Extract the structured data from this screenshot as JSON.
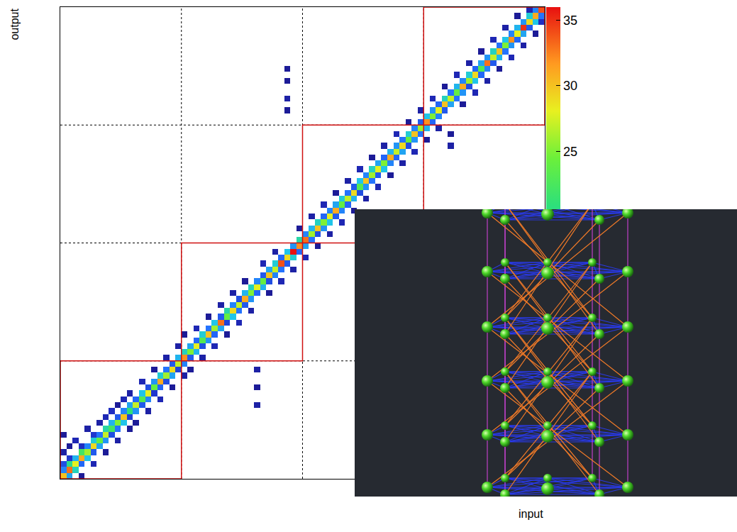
{
  "chart_data": {
    "type": "heatmap",
    "x_label": "input",
    "y_label": "output",
    "xlim": [
      0,
      80
    ],
    "ylim": [
      0,
      80
    ],
    "tick_labels": false,
    "blocks": [
      0,
      20,
      40,
      60,
      80
    ],
    "color_range": [
      0,
      36
    ],
    "color_ticks": [
      25,
      30,
      35
    ],
    "cells": [
      [
        0,
        0,
        30
      ],
      [
        0,
        1,
        12
      ],
      [
        0,
        2,
        8
      ],
      [
        0,
        4,
        3
      ],
      [
        0,
        7,
        2
      ],
      [
        1,
        0,
        14
      ],
      [
        1,
        1,
        33
      ],
      [
        1,
        2,
        20
      ],
      [
        1,
        3,
        6
      ],
      [
        1,
        5,
        2
      ],
      [
        2,
        1,
        18
      ],
      [
        2,
        2,
        28
      ],
      [
        2,
        3,
        15
      ],
      [
        2,
        6,
        4
      ],
      [
        3,
        0,
        2
      ],
      [
        3,
        2,
        10
      ],
      [
        3,
        3,
        31
      ],
      [
        3,
        4,
        22
      ],
      [
        3,
        5,
        5
      ],
      [
        4,
        3,
        16
      ],
      [
        4,
        4,
        26
      ],
      [
        4,
        5,
        12
      ],
      [
        4,
        8,
        3
      ],
      [
        5,
        2,
        4
      ],
      [
        5,
        4,
        9
      ],
      [
        5,
        5,
        29
      ],
      [
        5,
        6,
        17
      ],
      [
        5,
        7,
        6
      ],
      [
        6,
        5,
        14
      ],
      [
        6,
        6,
        24
      ],
      [
        6,
        7,
        11
      ],
      [
        6,
        9,
        3
      ],
      [
        7,
        4,
        2
      ],
      [
        7,
        6,
        13
      ],
      [
        7,
        7,
        27
      ],
      [
        7,
        8,
        19
      ],
      [
        7,
        10,
        4
      ],
      [
        8,
        7,
        8
      ],
      [
        8,
        8,
        22
      ],
      [
        8,
        9,
        15
      ],
      [
        8,
        11,
        5
      ],
      [
        9,
        6,
        3
      ],
      [
        9,
        8,
        11
      ],
      [
        9,
        9,
        25
      ],
      [
        9,
        10,
        9
      ],
      [
        9,
        12,
        2
      ],
      [
        10,
        9,
        16
      ],
      [
        10,
        10,
        30
      ],
      [
        10,
        11,
        12
      ],
      [
        10,
        13,
        4
      ],
      [
        11,
        8,
        2
      ],
      [
        11,
        10,
        7
      ],
      [
        11,
        11,
        21
      ],
      [
        11,
        12,
        14
      ],
      [
        11,
        14,
        3
      ],
      [
        12,
        11,
        13
      ],
      [
        12,
        12,
        27
      ],
      [
        12,
        13,
        10
      ],
      [
        12,
        9,
        2
      ],
      [
        13,
        12,
        9
      ],
      [
        13,
        13,
        23
      ],
      [
        13,
        14,
        16
      ],
      [
        13,
        16,
        4
      ],
      [
        14,
        13,
        12
      ],
      [
        14,
        14,
        28
      ],
      [
        14,
        15,
        8
      ],
      [
        14,
        11,
        3
      ],
      [
        15,
        14,
        6
      ],
      [
        15,
        15,
        24
      ],
      [
        15,
        16,
        13
      ],
      [
        15,
        18,
        2
      ],
      [
        16,
        15,
        10
      ],
      [
        16,
        16,
        31
      ],
      [
        16,
        17,
        17
      ],
      [
        16,
        13,
        4
      ],
      [
        17,
        16,
        8
      ],
      [
        17,
        17,
        26
      ],
      [
        17,
        18,
        11
      ],
      [
        17,
        20,
        3
      ],
      [
        18,
        17,
        14
      ],
      [
        18,
        18,
        29
      ],
      [
        18,
        19,
        9
      ],
      [
        18,
        15,
        2
      ],
      [
        19,
        18,
        7
      ],
      [
        19,
        19,
        27
      ],
      [
        19,
        20,
        15
      ],
      [
        19,
        22,
        3
      ],
      [
        20,
        19,
        12
      ],
      [
        20,
        20,
        32
      ],
      [
        20,
        21,
        18
      ],
      [
        20,
        17,
        3
      ],
      [
        20,
        24,
        2
      ],
      [
        21,
        20,
        9
      ],
      [
        21,
        21,
        25
      ],
      [
        21,
        22,
        14
      ],
      [
        21,
        18,
        2
      ],
      [
        22,
        21,
        15
      ],
      [
        22,
        22,
        28
      ],
      [
        22,
        23,
        10
      ],
      [
        22,
        25,
        4
      ],
      [
        23,
        22,
        8
      ],
      [
        23,
        23,
        23
      ],
      [
        23,
        24,
        17
      ],
      [
        23,
        20,
        3
      ],
      [
        24,
        23,
        13
      ],
      [
        24,
        24,
        30
      ],
      [
        24,
        25,
        11
      ],
      [
        24,
        27,
        2
      ],
      [
        25,
        24,
        10
      ],
      [
        25,
        25,
        26
      ],
      [
        25,
        26,
        16
      ],
      [
        25,
        22,
        4
      ],
      [
        26,
        25,
        14
      ],
      [
        26,
        26,
        33
      ],
      [
        26,
        27,
        9
      ],
      [
        26,
        29,
        3
      ],
      [
        27,
        26,
        7
      ],
      [
        27,
        27,
        24
      ],
      [
        27,
        28,
        19
      ],
      [
        27,
        24,
        2
      ],
      [
        28,
        27,
        16
      ],
      [
        28,
        28,
        29
      ],
      [
        28,
        29,
        12
      ],
      [
        28,
        31,
        3
      ],
      [
        29,
        28,
        11
      ],
      [
        29,
        29,
        27
      ],
      [
        29,
        30,
        8
      ],
      [
        29,
        26,
        4
      ],
      [
        30,
        29,
        9
      ],
      [
        30,
        30,
        31
      ],
      [
        30,
        31,
        15
      ],
      [
        30,
        33,
        2
      ],
      [
        31,
        30,
        13
      ],
      [
        31,
        31,
        25
      ],
      [
        31,
        32,
        18
      ],
      [
        31,
        28,
        3
      ],
      [
        32,
        31,
        10
      ],
      [
        32,
        32,
        28
      ],
      [
        32,
        33,
        12
      ],
      [
        32,
        12,
        3
      ],
      [
        32,
        15,
        2
      ],
      [
        32,
        18,
        3
      ],
      [
        33,
        32,
        15
      ],
      [
        33,
        33,
        24
      ],
      [
        33,
        34,
        9
      ],
      [
        33,
        36,
        4
      ],
      [
        34,
        33,
        8
      ],
      [
        34,
        34,
        30
      ],
      [
        34,
        35,
        14
      ],
      [
        34,
        31,
        2
      ],
      [
        35,
        34,
        12
      ],
      [
        35,
        35,
        27
      ],
      [
        35,
        36,
        17
      ],
      [
        35,
        38,
        3
      ],
      [
        36,
        35,
        11
      ],
      [
        36,
        36,
        34
      ],
      [
        36,
        37,
        10
      ],
      [
        36,
        33,
        4
      ],
      [
        37,
        36,
        9
      ],
      [
        37,
        37,
        29
      ],
      [
        37,
        38,
        16
      ],
      [
        37,
        62,
        2
      ],
      [
        37,
        64,
        3
      ],
      [
        37,
        67,
        2
      ],
      [
        37,
        69,
        2
      ],
      [
        38,
        37,
        17
      ],
      [
        38,
        38,
        36
      ],
      [
        38,
        39,
        13
      ],
      [
        38,
        35,
        3
      ],
      [
        39,
        38,
        10
      ],
      [
        39,
        39,
        32
      ],
      [
        39,
        40,
        19
      ],
      [
        39,
        42,
        2
      ],
      [
        40,
        39,
        14
      ],
      [
        40,
        40,
        33
      ],
      [
        40,
        41,
        12
      ],
      [
        40,
        37,
        4
      ],
      [
        41,
        40,
        11
      ],
      [
        41,
        41,
        26
      ],
      [
        41,
        42,
        15
      ],
      [
        41,
        44,
        3
      ],
      [
        42,
        41,
        8
      ],
      [
        42,
        42,
        30
      ],
      [
        42,
        43,
        18
      ],
      [
        42,
        39,
        2
      ],
      [
        43,
        42,
        13
      ],
      [
        43,
        43,
        25
      ],
      [
        43,
        44,
        10
      ],
      [
        43,
        46,
        4
      ],
      [
        44,
        43,
        16
      ],
      [
        44,
        44,
        28
      ],
      [
        44,
        45,
        12
      ],
      [
        44,
        41,
        3
      ],
      [
        45,
        44,
        9
      ],
      [
        45,
        45,
        31
      ],
      [
        45,
        46,
        14
      ],
      [
        45,
        48,
        2
      ],
      [
        46,
        45,
        12
      ],
      [
        46,
        46,
        24
      ],
      [
        46,
        47,
        17
      ],
      [
        46,
        43,
        4
      ],
      [
        47,
        46,
        10
      ],
      [
        47,
        47,
        27
      ],
      [
        47,
        48,
        11
      ],
      [
        47,
        50,
        3
      ],
      [
        48,
        47,
        15
      ],
      [
        48,
        48,
        29
      ],
      [
        48,
        49,
        9
      ],
      [
        48,
        45,
        2
      ],
      [
        49,
        48,
        8
      ],
      [
        49,
        49,
        23
      ],
      [
        49,
        50,
        16
      ],
      [
        49,
        52,
        4
      ],
      [
        50,
        49,
        13
      ],
      [
        50,
        50,
        30
      ],
      [
        50,
        51,
        12
      ],
      [
        50,
        47,
        3
      ],
      [
        51,
        50,
        11
      ],
      [
        51,
        51,
        26
      ],
      [
        51,
        52,
        18
      ],
      [
        51,
        54,
        2
      ],
      [
        52,
        51,
        9
      ],
      [
        52,
        52,
        28
      ],
      [
        52,
        53,
        14
      ],
      [
        52,
        49,
        4
      ],
      [
        53,
        52,
        16
      ],
      [
        53,
        53,
        25
      ],
      [
        53,
        54,
        10
      ],
      [
        53,
        56,
        3
      ],
      [
        54,
        53,
        12
      ],
      [
        54,
        54,
        31
      ],
      [
        54,
        55,
        15
      ],
      [
        54,
        51,
        2
      ],
      [
        55,
        54,
        10
      ],
      [
        55,
        55,
        27
      ],
      [
        55,
        56,
        13
      ],
      [
        55,
        58,
        4
      ],
      [
        56,
        55,
        14
      ],
      [
        56,
        56,
        29
      ],
      [
        56,
        57,
        11
      ],
      [
        56,
        53,
        3
      ],
      [
        57,
        56,
        8
      ],
      [
        57,
        57,
        24
      ],
      [
        57,
        58,
        17
      ],
      [
        57,
        60,
        2
      ],
      [
        58,
        57,
        13
      ],
      [
        58,
        58,
        30
      ],
      [
        58,
        59,
        12
      ],
      [
        58,
        55,
        4
      ],
      [
        59,
        58,
        11
      ],
      [
        59,
        59,
        26
      ],
      [
        59,
        60,
        9
      ],
      [
        59,
        62,
        3
      ],
      [
        60,
        59,
        15
      ],
      [
        60,
        60,
        32
      ],
      [
        60,
        61,
        16
      ],
      [
        60,
        57,
        2
      ],
      [
        61,
        60,
        10
      ],
      [
        61,
        61,
        25
      ],
      [
        61,
        62,
        13
      ],
      [
        61,
        64,
        4
      ],
      [
        62,
        61,
        12
      ],
      [
        62,
        62,
        28
      ],
      [
        62,
        63,
        10
      ],
      [
        62,
        59,
        3
      ],
      [
        63,
        62,
        9
      ],
      [
        63,
        63,
        30
      ],
      [
        63,
        64,
        18
      ],
      [
        63,
        66,
        2
      ],
      [
        64,
        63,
        14
      ],
      [
        64,
        64,
        27
      ],
      [
        64,
        65,
        11
      ],
      [
        64,
        56,
        3
      ],
      [
        64,
        58,
        2
      ],
      [
        65,
        64,
        11
      ],
      [
        65,
        65,
        24
      ],
      [
        65,
        66,
        15
      ],
      [
        65,
        68,
        4
      ],
      [
        66,
        65,
        13
      ],
      [
        66,
        66,
        31
      ],
      [
        66,
        67,
        12
      ],
      [
        66,
        63,
        2
      ],
      [
        67,
        66,
        8
      ],
      [
        67,
        67,
        26
      ],
      [
        67,
        68,
        17
      ],
      [
        67,
        70,
        3
      ],
      [
        68,
        67,
        16
      ],
      [
        68,
        68,
        29
      ],
      [
        68,
        69,
        10
      ],
      [
        68,
        65,
        4
      ],
      [
        69,
        68,
        10
      ],
      [
        69,
        69,
        23
      ],
      [
        69,
        70,
        14
      ],
      [
        69,
        72,
        2
      ],
      [
        70,
        69,
        12
      ],
      [
        70,
        70,
        33
      ],
      [
        70,
        71,
        13
      ],
      [
        70,
        67,
        3
      ],
      [
        71,
        70,
        9
      ],
      [
        71,
        71,
        27
      ],
      [
        71,
        72,
        18
      ],
      [
        71,
        74,
        4
      ],
      [
        72,
        71,
        15
      ],
      [
        72,
        72,
        30
      ],
      [
        72,
        73,
        11
      ],
      [
        72,
        69,
        2
      ],
      [
        73,
        72,
        11
      ],
      [
        73,
        73,
        25
      ],
      [
        73,
        74,
        16
      ],
      [
        73,
        76,
        3
      ],
      [
        74,
        73,
        13
      ],
      [
        74,
        74,
        32
      ],
      [
        74,
        75,
        12
      ],
      [
        74,
        71,
        4
      ],
      [
        75,
        74,
        10
      ],
      [
        75,
        75,
        28
      ],
      [
        75,
        76,
        15
      ],
      [
        75,
        78,
        2
      ],
      [
        76,
        75,
        14
      ],
      [
        76,
        76,
        35
      ],
      [
        76,
        77,
        13
      ],
      [
        76,
        73,
        3
      ],
      [
        77,
        76,
        9
      ],
      [
        77,
        77,
        29
      ],
      [
        77,
        78,
        17
      ],
      [
        77,
        79,
        4
      ],
      [
        78,
        77,
        16
      ],
      [
        78,
        78,
        31
      ],
      [
        78,
        79,
        12
      ],
      [
        78,
        75,
        2
      ],
      [
        79,
        78,
        11
      ],
      [
        79,
        79,
        34
      ],
      [
        79,
        77,
        5
      ]
    ]
  }
}
